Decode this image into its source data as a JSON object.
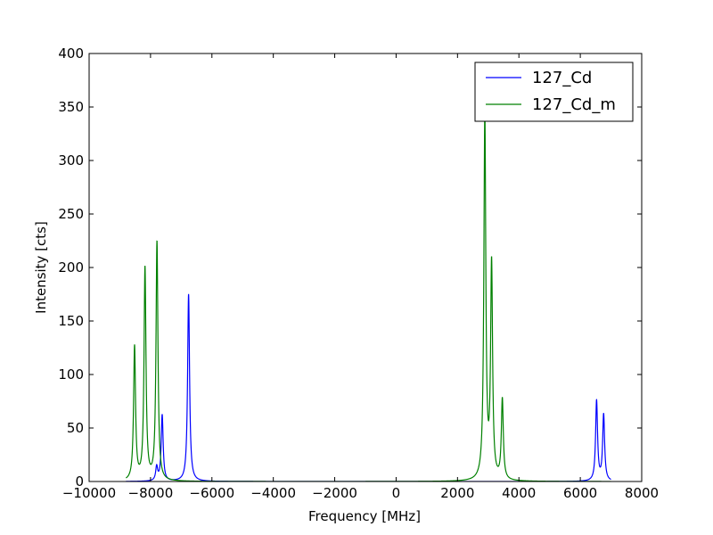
{
  "chart_data": {
    "type": "line",
    "title": "",
    "xlabel": "Frequency [MHz]",
    "ylabel": "Intensity [cts]",
    "xlim": [
      -10000,
      8000
    ],
    "ylim": [
      0,
      400
    ],
    "xticks": [
      -10000,
      -8000,
      -6000,
      -4000,
      -2000,
      0,
      2000,
      4000,
      6000,
      8000
    ],
    "yticks": [
      0,
      50,
      100,
      150,
      200,
      250,
      300,
      350,
      400
    ],
    "grid": false,
    "legend": "top-right",
    "x_range": [
      -8800,
      7000
    ],
    "series": [
      {
        "name": "127_Cd",
        "color": "#0000ff",
        "peaks": [
          {
            "x": -7800,
            "y": 13
          },
          {
            "x": -7620,
            "y": 62
          },
          {
            "x": -6760,
            "y": 175
          },
          {
            "x": 6530,
            "y": 75
          },
          {
            "x": 6760,
            "y": 62
          }
        ]
      },
      {
        "name": "127_Cd_m",
        "color": "#008000",
        "peaks": [
          {
            "x": -8520,
            "y": 125
          },
          {
            "x": -8180,
            "y": 198
          },
          {
            "x": -7790,
            "y": 223
          },
          {
            "x": 2890,
            "y": 340
          },
          {
            "x": 3110,
            "y": 200
          },
          {
            "x": 3460,
            "y": 75
          }
        ]
      }
    ]
  }
}
